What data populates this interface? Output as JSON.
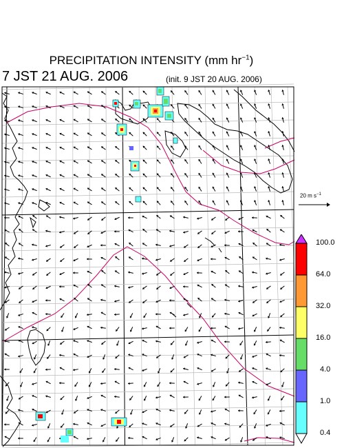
{
  "title": {
    "main": "PRECIPITATION INTENSITY (mm hr",
    "exponent": "−1",
    "close": ")"
  },
  "valid_time": "7 JST 21 AUG. 2006",
  "init_time": "(init. 9 JST 20 AUG. 2006)",
  "reference_vector": {
    "label": "20 m s",
    "exponent": "−1"
  },
  "colorbar": {
    "labels": [
      "100.0",
      "64.0",
      "32.0",
      "16.0",
      "4.0",
      "1.0",
      "0.4"
    ],
    "colors": [
      "#ff0000",
      "#ff9933",
      "#ffff66",
      "#66dd66",
      "#6666ff",
      "#66ffff"
    ],
    "above_color": "#cc33ff",
    "below_color": "#ffffff"
  },
  "map_colors": {
    "coastline": "#000000",
    "grid_lines": "#bbbbbb",
    "isobar_lines": "#cc0066",
    "wind_arrows": "#000000"
  }
}
